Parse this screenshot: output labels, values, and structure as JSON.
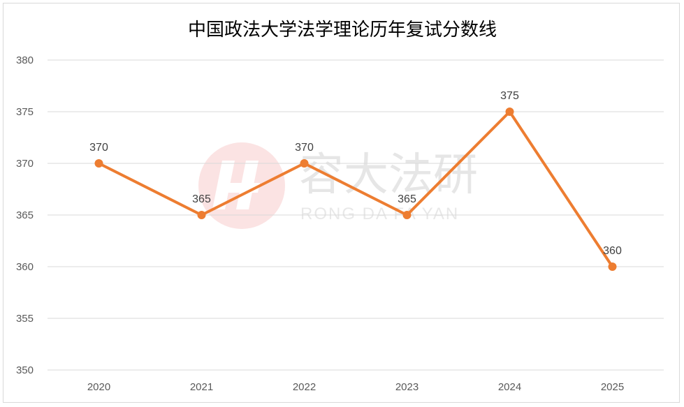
{
  "chart_data": {
    "type": "line",
    "title": "中国政法大学法学理论历年复试分数线",
    "xlabel": "",
    "ylabel": "",
    "categories": [
      "2020",
      "2021",
      "2022",
      "2023",
      "2024",
      "2025"
    ],
    "series": [
      {
        "values": [
          370,
          365,
          370,
          365,
          375,
          360
        ],
        "color": "#ed7d31"
      }
    ],
    "ylim": [
      350,
      380
    ],
    "yticks": [
      350,
      355,
      360,
      365,
      370,
      375,
      380
    ],
    "grid": true,
    "legend": "none",
    "data_labels": true
  },
  "watermark": {
    "text": "容大法研",
    "subtext": "RONG DA FA YAN",
    "logo": "rongda-logo"
  }
}
